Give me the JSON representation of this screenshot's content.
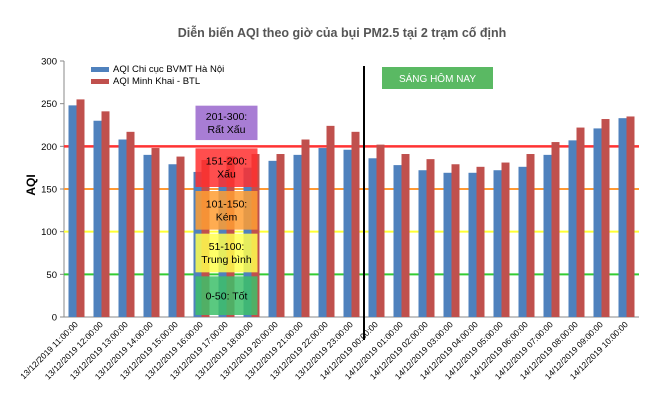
{
  "chart_data": {
    "type": "bar",
    "title": "Diễn biến AQI theo giờ của bụi PM2.5 tại 2 trạm cố định",
    "ylabel": "AQI",
    "xlabel": "",
    "ylim": [
      0,
      300
    ],
    "yticks": [
      0,
      50,
      100,
      150,
      200,
      250,
      300
    ],
    "grid": false,
    "legend_position": "top-left",
    "categories": [
      "13/12/2019 11:00:00",
      "13/12/2019 12:00:00",
      "13/12/2019 13:00:00",
      "13/12/2019 14:00:00",
      "13/12/2019 15:00:00",
      "13/12/2019 16:00:00",
      "13/12/2019 17:00:00",
      "13/12/2019 18:00:00",
      "13/12/2019 20:00:00",
      "13/12/2019 21:00:00",
      "13/12/2019 22:00:00",
      "13/12/2019 23:00:00",
      "14/12/2019 00:00:00",
      "14/12/2019 01:00:00",
      "14/12/2019 02:00:00",
      "14/12/2019 03:00:00",
      "14/12/2019 04:00:00",
      "14/12/2019 05:00:00",
      "14/12/2019 06:00:00",
      "14/12/2019 07:00:00",
      "14/12/2019 08:00:00",
      "14/12/2019 09:00:00",
      "14/12/2019 10:00:00"
    ],
    "series": [
      {
        "name": "AQI Chi cục BVMT Hà Nội",
        "color": "#4f81bd",
        "values": [
          248,
          230,
          208,
          190,
          179,
          170,
          167,
          175,
          183,
          190,
          198,
          196,
          186,
          178,
          172,
          169,
          169,
          172,
          176,
          190,
          207,
          221,
          233
        ]
      },
      {
        "name": "AQI Minh Khai - BTL",
        "color": "#c0504d",
        "values": [
          255,
          241,
          217,
          198,
          188,
          184,
          188,
          191,
          191,
          208,
          224,
          217,
          202,
          191,
          185,
          179,
          176,
          181,
          191,
          205,
          222,
          232,
          235
        ]
      }
    ],
    "threshold_lines": [
      {
        "value": 50,
        "color": "#33cc33"
      },
      {
        "value": 100,
        "color": "#ffff33"
      },
      {
        "value": 150,
        "color": "#ff9933"
      },
      {
        "value": 200,
        "color": "#ff3333"
      }
    ],
    "bands": [
      {
        "label": "0-50: Tốt",
        "color": "#3dbf6a",
        "from": 0,
        "to": 50
      },
      {
        "label": "51-100: Trung bình",
        "color": "#ffff4d",
        "from": 50,
        "to": 100
      },
      {
        "label": "101-150: Kém",
        "color": "#ff9e33",
        "from": 100,
        "to": 150
      },
      {
        "label": "151-200: Xấu",
        "color": "#ff2f2f",
        "from": 150,
        "to": 200
      },
      {
        "label": "201-300: Rất Xấu",
        "color": "#9966cc",
        "from": 205,
        "to": 250
      }
    ],
    "divider_after_index": 11,
    "annotation": {
      "label": "SÁNG HÔM NAY",
      "color": "#5ab963"
    }
  }
}
